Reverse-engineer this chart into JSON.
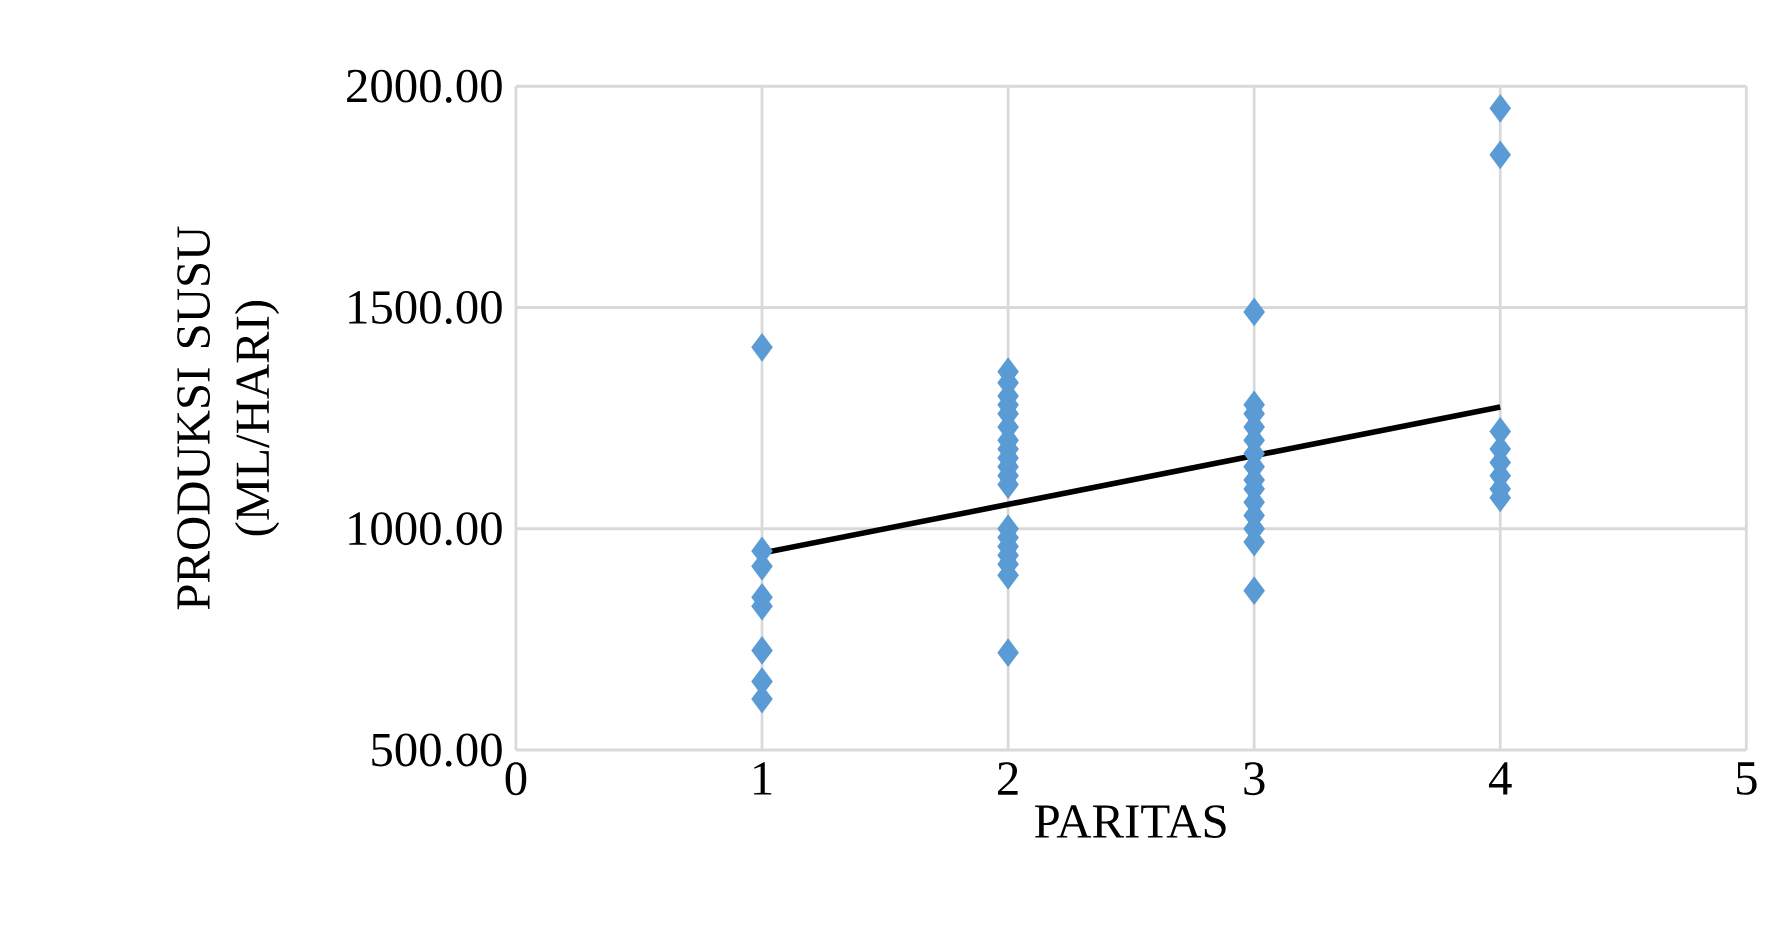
{
  "chart_data": {
    "type": "scatter",
    "xlabel": "PARITAS",
    "ylabel": "PRODUKSI SUSU (ML/HARI)",
    "xlim": [
      0,
      5
    ],
    "xticks": [
      0,
      1,
      2,
      3,
      4,
      5
    ],
    "ylim": [
      500,
      2000
    ],
    "yticks": [
      {
        "value": 500,
        "label": "500.00"
      },
      {
        "value": 1000,
        "label": "1000.00"
      },
      {
        "value": 1500,
        "label": "1500.00"
      },
      {
        "value": 2000,
        "label": "2000.00"
      }
    ],
    "grid": true,
    "series": [
      {
        "marker": "diamond",
        "color": "#5b9bd5",
        "x": [
          1,
          1,
          1,
          1,
          1,
          1,
          1,
          1,
          2,
          2,
          2,
          2,
          2,
          2,
          2,
          2,
          2,
          2,
          2,
          2,
          2,
          2,
          2,
          2,
          2,
          2,
          2,
          3,
          3,
          3,
          3,
          3,
          3,
          3,
          3,
          3,
          3,
          3,
          3,
          3,
          3,
          4,
          4,
          4,
          4,
          4,
          4,
          4,
          4
        ],
        "values": [
          1410,
          950,
          915,
          845,
          825,
          725,
          655,
          615,
          1355,
          1330,
          1300,
          1280,
          1260,
          1230,
          1200,
          1180,
          1160,
          1140,
          1120,
          1100,
          1000,
          980,
          960,
          940,
          920,
          895,
          720,
          1490,
          1280,
          1260,
          1230,
          1200,
          1170,
          1140,
          1110,
          1090,
          1060,
          1030,
          1000,
          970,
          860,
          1950,
          1845,
          1220,
          1180,
          1150,
          1120,
          1090,
          1070
        ]
      },
      {
        "type": "line",
        "marker": "none",
        "color": "#000000",
        "x": [
          1,
          4
        ],
        "values": [
          945,
          1275
        ]
      }
    ]
  }
}
